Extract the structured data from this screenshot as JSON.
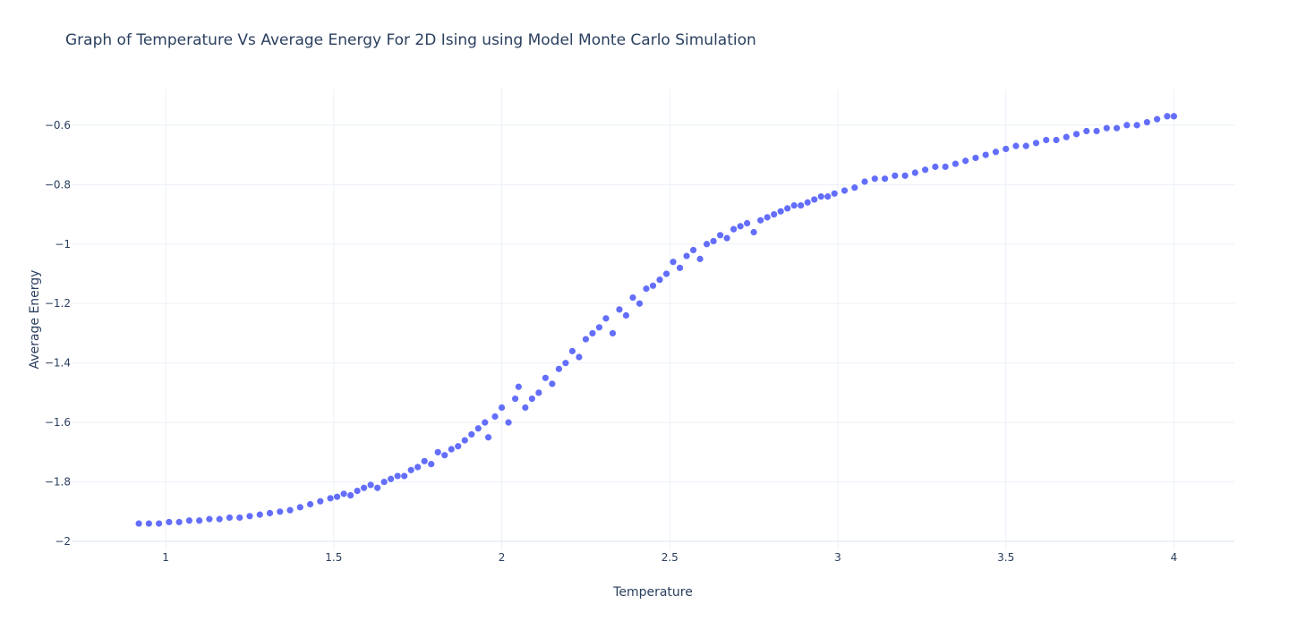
{
  "chart_data": {
    "type": "scatter",
    "title": "Graph of Temperature Vs Average Energy For 2D Ising using Model Monte Carlo Simulation",
    "xlabel": "Temperature",
    "ylabel": "Average Energy",
    "xlim": [
      0.72,
      4.18
    ],
    "ylim": [
      -2.03,
      -0.48
    ],
    "xticks": [
      1,
      1.5,
      2,
      2.5,
      3,
      3.5,
      4
    ],
    "xtick_labels": [
      "1",
      "1.5",
      "2",
      "2.5",
      "3",
      "3.5",
      "4"
    ],
    "yticks": [
      -2,
      -1.8,
      -1.6,
      -1.4,
      -1.2,
      -1,
      -0.8,
      -0.6
    ],
    "ytick_labels": [
      "−2",
      "−1.8",
      "−1.6",
      "−1.4",
      "−1.2",
      "−1",
      "−0.8",
      "−0.6"
    ],
    "grid": true,
    "legend": "none",
    "marker_color": "#636efa",
    "x": [
      0.92,
      0.95,
      0.98,
      1.01,
      1.04,
      1.07,
      1.1,
      1.13,
      1.16,
      1.19,
      1.22,
      1.25,
      1.28,
      1.31,
      1.34,
      1.37,
      1.4,
      1.43,
      1.46,
      1.49,
      1.51,
      1.53,
      1.55,
      1.57,
      1.59,
      1.61,
      1.63,
      1.65,
      1.67,
      1.69,
      1.71,
      1.73,
      1.75,
      1.77,
      1.79,
      1.81,
      1.83,
      1.85,
      1.87,
      1.89,
      1.91,
      1.93,
      1.95,
      1.96,
      1.98,
      2.0,
      2.02,
      2.04,
      2.05,
      2.07,
      2.09,
      2.11,
      2.13,
      2.15,
      2.17,
      2.19,
      2.21,
      2.23,
      2.25,
      2.27,
      2.29,
      2.31,
      2.33,
      2.35,
      2.37,
      2.39,
      2.41,
      2.43,
      2.45,
      2.47,
      2.49,
      2.51,
      2.53,
      2.55,
      2.57,
      2.59,
      2.61,
      2.63,
      2.65,
      2.67,
      2.69,
      2.71,
      2.73,
      2.75,
      2.77,
      2.79,
      2.81,
      2.83,
      2.85,
      2.87,
      2.89,
      2.91,
      2.93,
      2.95,
      2.97,
      2.99,
      3.02,
      3.05,
      3.08,
      3.11,
      3.14,
      3.17,
      3.2,
      3.23,
      3.26,
      3.29,
      3.32,
      3.35,
      3.38,
      3.41,
      3.44,
      3.47,
      3.5,
      3.53,
      3.56,
      3.59,
      3.62,
      3.65,
      3.68,
      3.71,
      3.74,
      3.77,
      3.8,
      3.83,
      3.86,
      3.89,
      3.92,
      3.95,
      3.98,
      4.0
    ],
    "y": [
      -1.94,
      -1.94,
      -1.94,
      -1.935,
      -1.935,
      -1.93,
      -1.93,
      -1.925,
      -1.925,
      -1.92,
      -1.92,
      -1.915,
      -1.91,
      -1.905,
      -1.9,
      -1.895,
      -1.885,
      -1.875,
      -1.865,
      -1.855,
      -1.85,
      -1.84,
      -1.845,
      -1.83,
      -1.82,
      -1.81,
      -1.82,
      -1.8,
      -1.79,
      -1.78,
      -1.78,
      -1.76,
      -1.75,
      -1.73,
      -1.74,
      -1.7,
      -1.71,
      -1.69,
      -1.68,
      -1.66,
      -1.64,
      -1.62,
      -1.6,
      -1.65,
      -1.58,
      -1.55,
      -1.6,
      -1.52,
      -1.48,
      -1.55,
      -1.52,
      -1.5,
      -1.45,
      -1.47,
      -1.42,
      -1.4,
      -1.36,
      -1.38,
      -1.32,
      -1.3,
      -1.28,
      -1.25,
      -1.3,
      -1.22,
      -1.24,
      -1.18,
      -1.2,
      -1.15,
      -1.14,
      -1.12,
      -1.1,
      -1.06,
      -1.08,
      -1.04,
      -1.02,
      -1.05,
      -1.0,
      -0.99,
      -0.97,
      -0.98,
      -0.95,
      -0.94,
      -0.93,
      -0.96,
      -0.92,
      -0.91,
      -0.9,
      -0.89,
      -0.88,
      -0.87,
      -0.87,
      -0.86,
      -0.85,
      -0.84,
      -0.84,
      -0.83,
      -0.82,
      -0.81,
      -0.79,
      -0.78,
      -0.78,
      -0.77,
      -0.77,
      -0.76,
      -0.75,
      -0.74,
      -0.74,
      -0.73,
      -0.72,
      -0.71,
      -0.7,
      -0.69,
      -0.68,
      -0.67,
      -0.67,
      -0.66,
      -0.65,
      -0.65,
      -0.64,
      -0.63,
      -0.62,
      -0.62,
      -0.61,
      -0.61,
      -0.6,
      -0.6,
      -0.59,
      -0.58,
      -0.57,
      -0.57
    ]
  }
}
